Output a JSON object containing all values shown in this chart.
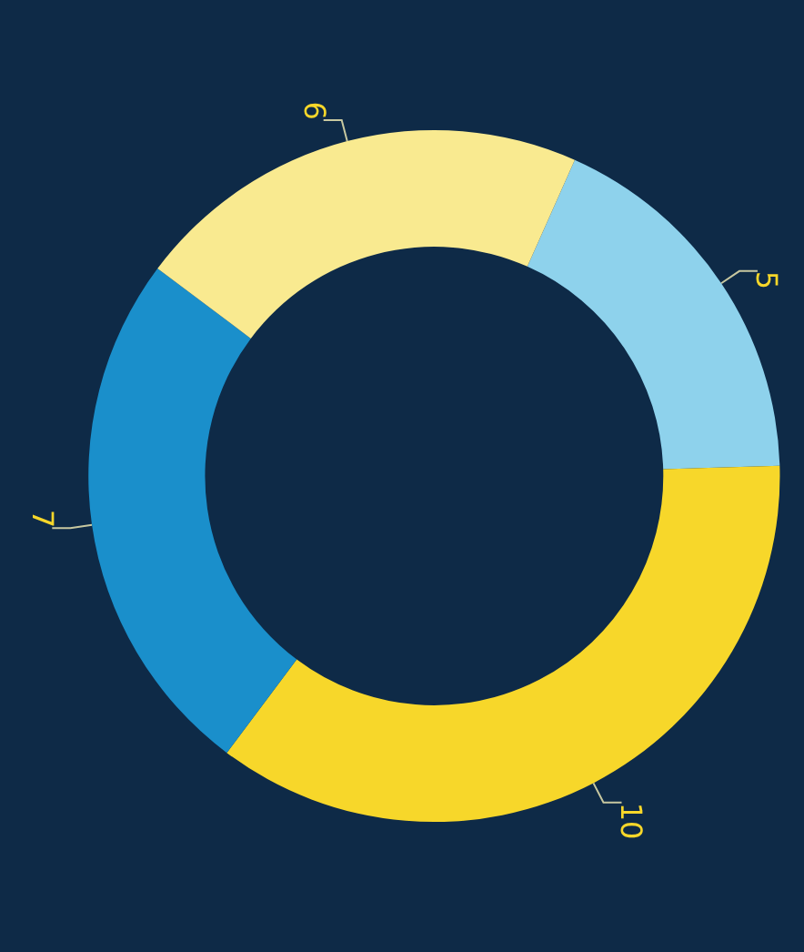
{
  "chart_data": {
    "type": "donut",
    "categories": [
      null,
      null,
      null,
      null
    ],
    "values": [
      5,
      10,
      7,
      6
    ],
    "colors": [
      "#8ed2ec",
      "#f7d72a",
      "#1a8fcb",
      "#f9ea90"
    ],
    "data_labels": true
  }
}
